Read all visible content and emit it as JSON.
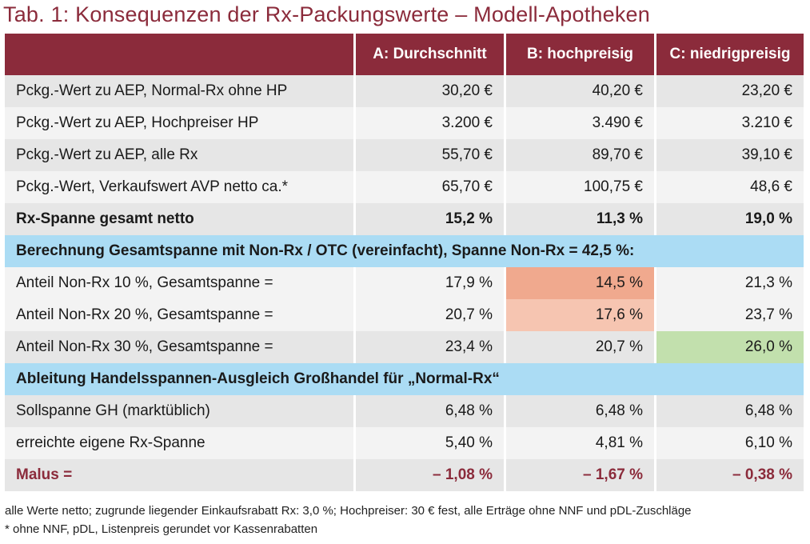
{
  "title": "Tab. 1: Konsequenzen der Rx-Packungswerte – Modell-Apotheken",
  "header": {
    "col0": "",
    "col1": "A: Durchschnitt",
    "col2": "B: hochpreisig",
    "col3": "C: niedrigpreisig"
  },
  "rows": [
    {
      "label": "Pckg.-Wert zu AEP, Normal-Rx ohne HP",
      "a": "30,20 €",
      "b": "40,20 €",
      "c": "23,20 €"
    },
    {
      "label": "Pckg.-Wert zu AEP, Hochpreiser HP",
      "a": "3.200 €",
      "b": "3.490 €",
      "c": "3.210 €"
    },
    {
      "label": "Pckg.-Wert zu AEP, alle Rx",
      "a": "55,70 €",
      "b": "89,70 €",
      "c": "39,10 €"
    },
    {
      "label": "Pckg.-Wert, Verkaufswert AVP netto ca.*",
      "a": "65,70 €",
      "b": "100,75 €",
      "c": "48,6 €"
    },
    {
      "label": "Rx-Spanne gesamt netto",
      "a": "15,2 %",
      "b": "11,3 %",
      "c": "19,0 %"
    },
    {
      "section": "Berechnung Gesamtspanne mit Non-Rx / OTC (vereinfacht), Spanne Non-Rx = 42,5 %:"
    },
    {
      "label": "Anteil Non-Rx 10 %, Gesamtspanne =",
      "a": "17,9 %",
      "b": "14,5 %",
      "c": "21,3 %"
    },
    {
      "label": "Anteil Non-Rx 20 %, Gesamtspanne =",
      "a": "20,7 %",
      "b": "17,6 %",
      "c": "23,7 %"
    },
    {
      "label": "Anteil Non-Rx 30 %, Gesamtspanne =",
      "a": "23,4 %",
      "b": "20,7 %",
      "c": "26,0 %"
    },
    {
      "section": "Ableitung Handelsspannen-Ausgleich Großhandel für „Normal-Rx“"
    },
    {
      "label": "Sollspanne GH (marktüblich)",
      "a": "6,48 %",
      "b": "6,48 %",
      "c": "6,48 %"
    },
    {
      "label": "erreichte eigene Rx-Spanne",
      "a": "5,40 %",
      "b": "4,81 %",
      "c": "6,10 %"
    },
    {
      "label": "Malus =",
      "a": "– 1,08 %",
      "b": "– 1,67 %",
      "c": "– 0,38 %"
    }
  ],
  "footnotes": [
    "alle Werte netto; zugrunde liegender Einkaufsrabatt Rx: 3,0 %; Hochpreiser: 30 € fest, alle Erträge ohne NNF und pDL-Zuschläge",
    "* ohne NNF, pDL, Listenpreis gerundet vor Kassenrabatten"
  ],
  "colors": {
    "brand": "#8b2b3b",
    "section_bg": "#abdcf4",
    "highlight_dark": "#f0a98e",
    "highlight_light": "#f6c5b1",
    "highlight_green": "#c2e0ad"
  }
}
